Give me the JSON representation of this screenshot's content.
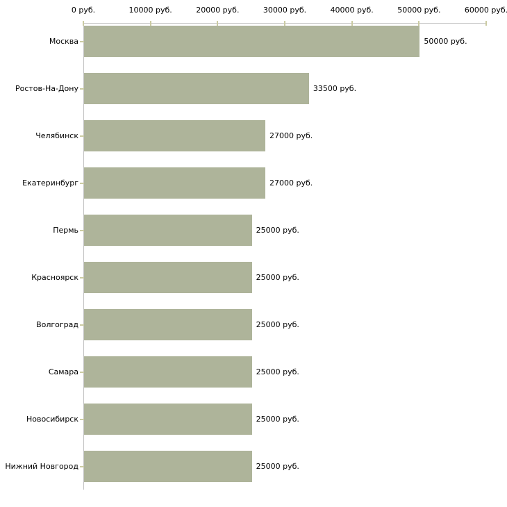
{
  "chart_data": {
    "type": "bar",
    "orientation": "horizontal",
    "title": "",
    "xlabel": "",
    "ylabel": "",
    "categories": [
      "Москва",
      "Ростов-На-Дону",
      "Челябинск",
      "Екатеринбург",
      "Пермь",
      "Красноярск",
      "Волгоград",
      "Самара",
      "Новосибирск",
      "Нижний Новгород"
    ],
    "values": [
      50000,
      33500,
      27000,
      27000,
      25000,
      25000,
      25000,
      25000,
      25000,
      25000
    ],
    "value_labels": [
      "50000 руб.",
      "33500 руб.",
      "27000 руб.",
      "27000 руб.",
      "25000 руб.",
      "25000 руб.",
      "25000 руб.",
      "25000 руб.",
      "25000 руб.",
      "25000 руб."
    ],
    "x_ticks": [
      0,
      10000,
      20000,
      30000,
      40000,
      50000,
      60000
    ],
    "x_tick_labels": [
      "0 руб.",
      "10000 руб.",
      "20000 руб.",
      "30000 руб.",
      "40000 руб.",
      "50000 руб.",
      "60000 руб."
    ],
    "xlim": [
      0,
      60000
    ],
    "grid": false,
    "legend": null,
    "colors": {
      "bar_fill": "#aeb49a",
      "axis_line": "#c3c3c3",
      "tick_mark": "#cbcba3",
      "text": "#000000",
      "background": "#ffffff"
    }
  }
}
